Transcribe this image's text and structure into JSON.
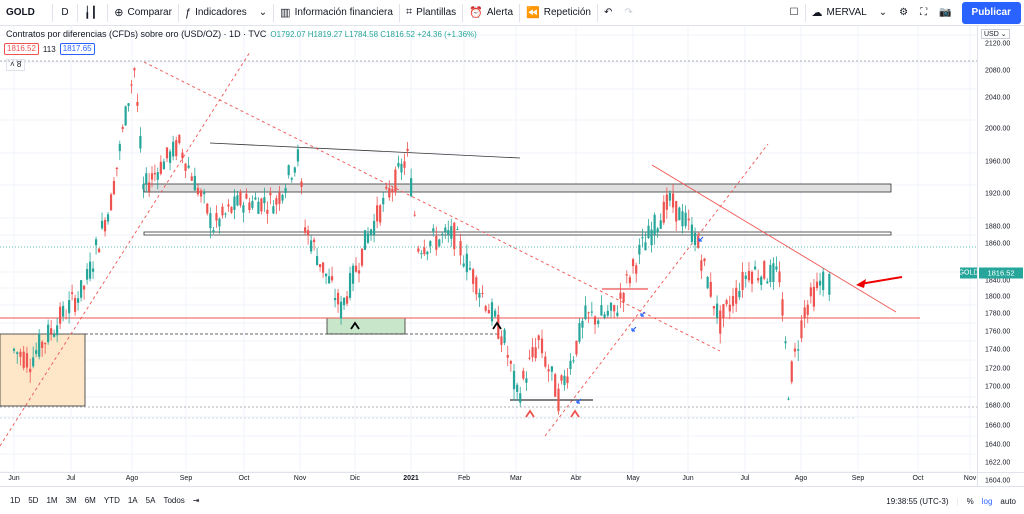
{
  "toolbar": {
    "symbol": "GOLD",
    "interval": "D",
    "compare": "Comparar",
    "indicators": "Indicadores",
    "financials": "Información financiera",
    "templates": "Plantillas",
    "alert": "Alerta",
    "replay": "Repetición",
    "layout_name": "MERVAL",
    "publish": "Publicar"
  },
  "legend": {
    "title": "Contratos por diferencias (CFDs) sobre oro (USD/OZ) · 1D · TVC",
    "ohlc": "O1792.07 H1819.27 L1784.58 C1816.52 +24.36 (+1.36%)",
    "bid": "1816.52",
    "spread": "113",
    "ask": "1817.65",
    "indicator_count": "8"
  },
  "price_axis": {
    "currency": "USD",
    "ticks": [
      "2120.00",
      "2080.00",
      "2040.00",
      "2000.00",
      "1960.00",
      "1920.00",
      "1880.00",
      "1860.00",
      "1840.00",
      "1800.00",
      "1780.00",
      "1760.00",
      "1740.00",
      "1720.00",
      "1700.00",
      "1680.00",
      "1660.00",
      "1640.00",
      "1622.00",
      "1604.00"
    ],
    "current_price": "1816.52",
    "symbol_label": "GOLD"
  },
  "time_axis": {
    "ticks": [
      "Jun",
      "Jul",
      "Ago",
      "Sep",
      "Oct",
      "Nov",
      "Dic",
      "2021",
      "Feb",
      "Mar",
      "Abr",
      "May",
      "Jun",
      "Jul",
      "Ago",
      "Sep",
      "Oct",
      "Nov"
    ]
  },
  "bottom": {
    "ranges": [
      "1D",
      "5D",
      "1M",
      "3M",
      "6M",
      "YTD",
      "1A",
      "5A",
      "Todos"
    ],
    "clock": "19:38:55 (UTC-3)",
    "percent": "%",
    "log": "log",
    "auto": "auto"
  },
  "colors": {
    "up": "#26a69a",
    "down": "#ef5350",
    "accent": "#2962ff"
  },
  "chart_data": {
    "type": "candlestick",
    "title": "Contratos por diferencias (CFDs) sobre oro (USD/OZ) · 1D · TVC",
    "xlabel": "",
    "ylabel": "",
    "x_range": [
      "2020-06-01",
      "2021-11-15"
    ],
    "ylim": [
      1600,
      2130
    ],
    "last": {
      "open": 1792.07,
      "high": 1819.27,
      "low": 1784.58,
      "close": 1816.52,
      "change": 24.36,
      "change_pct": 1.36
    },
    "price_path": [
      [
        "2020-06-01",
        1730
      ],
      [
        "2020-06-10",
        1720
      ],
      [
        "2020-06-25",
        1760
      ],
      [
        "2020-07-10",
        1800
      ],
      [
        "2020-07-25",
        1900
      ],
      [
        "2020-08-07",
        2070
      ],
      [
        "2020-08-12",
        1915
      ],
      [
        "2020-08-20",
        1940
      ],
      [
        "2020-09-01",
        1970
      ],
      [
        "2020-09-20",
        1870
      ],
      [
        "2020-10-05",
        1900
      ],
      [
        "2020-10-25",
        1900
      ],
      [
        "2020-11-06",
        1955
      ],
      [
        "2020-11-10",
        1870
      ],
      [
        "2020-11-25",
        1800
      ],
      [
        "2020-11-30",
        1775
      ],
      [
        "2020-12-15",
        1860
      ],
      [
        "2021-01-06",
        1955
      ],
      [
        "2021-01-12",
        1850
      ],
      [
        "2021-02-01",
        1860
      ],
      [
        "2021-02-15",
        1800
      ],
      [
        "2021-03-01",
        1740
      ],
      [
        "2021-03-08",
        1680
      ],
      [
        "2021-03-20",
        1740
      ],
      [
        "2021-03-31",
        1680
      ],
      [
        "2021-04-15",
        1765
      ],
      [
        "2021-05-01",
        1770
      ],
      [
        "2021-05-15",
        1840
      ],
      [
        "2021-06-01",
        1900
      ],
      [
        "2021-06-15",
        1860
      ],
      [
        "2021-06-29",
        1760
      ],
      [
        "2021-07-15",
        1820
      ],
      [
        "2021-08-01",
        1815
      ],
      [
        "2021-08-06",
        1690
      ],
      [
        "2021-08-15",
        1775
      ],
      [
        "2021-08-27",
        1816
      ]
    ],
    "annotations": [
      "GOLD 1816.52"
    ],
    "grid": true
  }
}
